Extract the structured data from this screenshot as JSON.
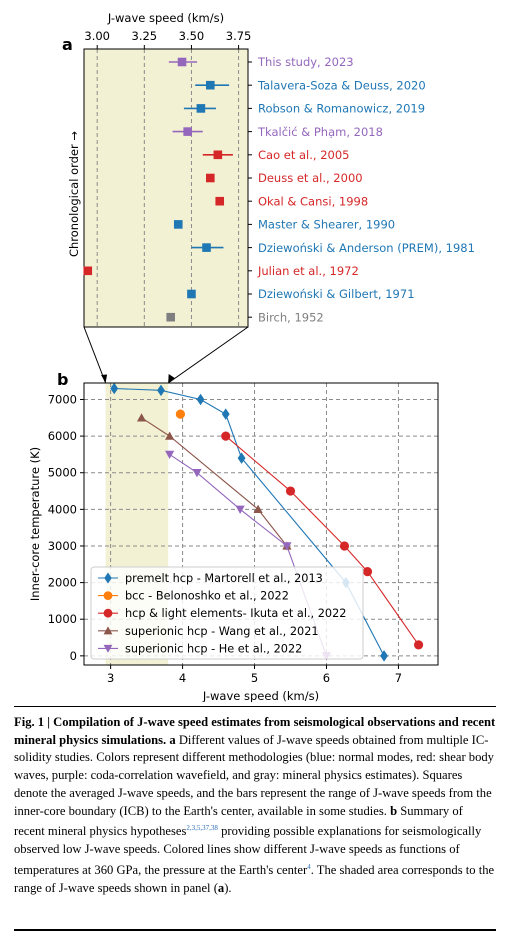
{
  "panel_a_letter": "a",
  "panel_b_letter": "b",
  "colors": {
    "blue": "#1f77b4",
    "red": "#d62728",
    "purple": "#9467bd",
    "gray": "#7f7f7f",
    "orange": "#ff7f0e",
    "brown": "#8c564b",
    "shade": "#f3f1d4"
  },
  "chart_data": [
    {
      "type": "scatter",
      "panel": "a",
      "xlabel": "J-wave speed (km/s)",
      "ylabel": "Chronological order →",
      "xlim": [
        2.93,
        3.8
      ],
      "x_ticks": [
        "3.00",
        "3.25",
        "3.50",
        "3.75"
      ],
      "x_tick_values": [
        3.0,
        3.25,
        3.5,
        3.75
      ],
      "x_axis_position": "top",
      "grid": true,
      "studies": [
        {
          "label": "This study, 2023",
          "value": 3.45,
          "low": 3.38,
          "high": 3.53,
          "color": "purple"
        },
        {
          "label": "Talavera-Soza & Deuss, 2020",
          "value": 3.6,
          "low": 3.52,
          "high": 3.7,
          "color": "blue"
        },
        {
          "label": "Robson & Romanowicz, 2019",
          "value": 3.55,
          "low": 3.46,
          "high": 3.63,
          "color": "blue"
        },
        {
          "label": "Tkalčić & Phạm, 2018",
          "value": 3.48,
          "low": 3.4,
          "high": 3.56,
          "color": "purple"
        },
        {
          "label": "Cao et al., 2005",
          "value": 3.64,
          "low": 3.56,
          "high": 3.72,
          "color": "red"
        },
        {
          "label": "Deuss et al., 2000",
          "value": 3.6,
          "color": "red"
        },
        {
          "label": "Okal & Cansi, 1998",
          "value": 3.65,
          "color": "red"
        },
        {
          "label": "Master & Shearer, 1990",
          "value": 3.43,
          "color": "blue"
        },
        {
          "label": "Dziewoński & Anderson (PREM), 1981",
          "value": 3.58,
          "low": 3.5,
          "high": 3.67,
          "color": "blue"
        },
        {
          "label": "Julian et al., 1972",
          "value": 2.95,
          "color": "red"
        },
        {
          "label": "Dziewoński & Gilbert, 1971",
          "value": 3.5,
          "color": "blue"
        },
        {
          "label": "Birch, 1952",
          "value": 3.39,
          "color": "gray"
        }
      ]
    },
    {
      "type": "line",
      "panel": "b",
      "xlabel": "J-wave speed (km/s)",
      "ylabel": "Inner-core temperature (K)",
      "xlim": [
        2.63,
        7.55
      ],
      "ylim": [
        -250,
        7450
      ],
      "x_ticks": [
        "3",
        "4",
        "5",
        "6",
        "7"
      ],
      "x_tick_values": [
        3,
        4,
        5,
        6,
        7
      ],
      "y_ticks": [
        "0",
        "1000",
        "2000",
        "3000",
        "4000",
        "5000",
        "6000",
        "7000"
      ],
      "y_tick_values": [
        0,
        1000,
        2000,
        3000,
        4000,
        5000,
        6000,
        7000
      ],
      "shaded_x_range": [
        2.93,
        3.8
      ],
      "grid": true,
      "legend_position": "lower-left",
      "series": [
        {
          "name": "premelt hcp - Martorell et al., 2013",
          "color": "blue",
          "marker": "diamond",
          "x": [
            3.05,
            3.7,
            4.25,
            4.6,
            4.82,
            6.27,
            6.8
          ],
          "y": [
            7300,
            7250,
            7000,
            6600,
            5400,
            2000,
            0
          ]
        },
        {
          "name": "bcc - Belonoshko et al., 2022",
          "color": "orange",
          "marker": "circle",
          "x": [
            3.97
          ],
          "y": [
            6600
          ]
        },
        {
          "name": "hcp & light elements- Ikuta et al., 2022",
          "color": "red",
          "marker": "circle",
          "x": [
            4.6,
            5.5,
            6.25,
            6.57,
            7.28
          ],
          "y": [
            6000,
            4500,
            3000,
            2300,
            300
          ]
        },
        {
          "name": "superionic hcp - Wang et al., 2021",
          "color": "brown",
          "marker": "triangle-up",
          "x": [
            3.43,
            3.82,
            5.05,
            5.45
          ],
          "y": [
            6500,
            6000,
            4000,
            3000
          ]
        },
        {
          "name": "superionic hcp - He et al., 2022",
          "color": "purple",
          "marker": "triangle-down",
          "x": [
            3.82,
            4.2,
            4.8,
            5.45,
            6.0
          ],
          "y": [
            5500,
            5000,
            4000,
            3000,
            0
          ]
        }
      ]
    }
  ],
  "caption": {
    "lead": "Fig. 1 | Compilation of J-wave speed estimates from seismological observations and recent mineral physics simulations.",
    "part_a_label": "a",
    "part_a_text": "Different values of J-wave speeds obtained from multiple IC-solidity studies. Colors represent different methodologies (blue: normal modes, red: shear body waves, purple: coda-correlation wavefield, and gray: mineral physics estimates). Squares denote the averaged J-wave speeds, and the bars represent the range of J-wave speeds from the inner-core boundary (ICB) to the Earth's center, available in some studies.",
    "part_b_label": "b",
    "part_b_text": "Summary of recent mineral physics hypotheses",
    "refs_b": "2,3,5,37,38",
    "part_b_text2": "providing possible explanations for seismologically observed low J-wave speeds. Colored lines show different J-wave speeds as functions of temperatures at 360 GPa, the pressure at the Earth's center",
    "ref_center": "4",
    "tail": ". The shaded area corresponds to the range of J-wave speeds shown in panel (",
    "tail_a": "a",
    "tail_end": ")."
  }
}
